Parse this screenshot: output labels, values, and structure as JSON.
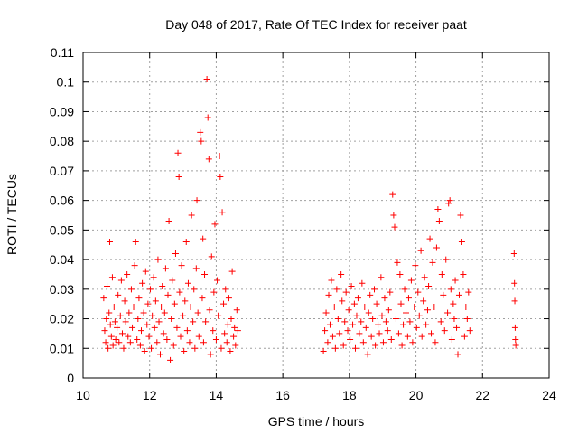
{
  "chart_data": {
    "type": "scatter",
    "title": "Day 048 of 2017, Rate Of TEC Index for receiver paat",
    "xlabel": "GPS time / hours",
    "ylabel": "ROTI / TECUs",
    "xlim": [
      10,
      24
    ],
    "ylim": [
      0,
      0.11
    ],
    "xticks": [
      "10",
      "12",
      "14",
      "16",
      "18",
      "20",
      "22",
      "24"
    ],
    "yticks": [
      "0",
      "0.01",
      "0.02",
      "0.03",
      "0.04",
      "0.05",
      "0.06",
      "0.07",
      "0.08",
      "0.09",
      "0.1",
      "0.11"
    ],
    "grid": true,
    "marker": "plus",
    "color": "#ff0000",
    "series": [
      {
        "points": [
          [
            10.62,
            0.027
          ],
          [
            10.65,
            0.016
          ],
          [
            10.68,
            0.012
          ],
          [
            10.7,
            0.02
          ],
          [
            10.72,
            0.031
          ],
          [
            10.75,
            0.01
          ],
          [
            10.78,
            0.022
          ],
          [
            10.8,
            0.046
          ],
          [
            10.82,
            0.018
          ],
          [
            10.85,
            0.014
          ],
          [
            10.88,
            0.034
          ],
          [
            10.9,
            0.011
          ],
          [
            10.93,
            0.024
          ],
          [
            10.96,
            0.019
          ],
          [
            10.98,
            0.013
          ],
          [
            11.02,
            0.017
          ],
          [
            11.05,
            0.028
          ],
          [
            11.08,
            0.012
          ],
          [
            11.12,
            0.021
          ],
          [
            11.15,
            0.033
          ],
          [
            11.18,
            0.015
          ],
          [
            11.22,
            0.01
          ],
          [
            11.25,
            0.026
          ],
          [
            11.28,
            0.019
          ],
          [
            11.32,
            0.035
          ],
          [
            11.35,
            0.014
          ],
          [
            11.38,
            0.022
          ],
          [
            11.42,
            0.012
          ],
          [
            11.45,
            0.03
          ],
          [
            11.48,
            0.017
          ],
          [
            11.52,
            0.024
          ],
          [
            11.55,
            0.038
          ],
          [
            11.58,
            0.046
          ],
          [
            11.62,
            0.013
          ],
          [
            11.65,
            0.02
          ],
          [
            11.68,
            0.027
          ],
          [
            11.72,
            0.011
          ],
          [
            11.75,
            0.016
          ],
          [
            11.78,
            0.032
          ],
          [
            11.82,
            0.022
          ],
          [
            11.85,
            0.009
          ],
          [
            11.88,
            0.036
          ],
          [
            11.92,
            0.018
          ],
          [
            11.95,
            0.025
          ],
          [
            11.98,
            0.014
          ],
          [
            12.02,
            0.03
          ],
          [
            12.05,
            0.01
          ],
          [
            12.08,
            0.021
          ],
          [
            12.12,
            0.034
          ],
          [
            12.15,
            0.017
          ],
          [
            12.18,
            0.026
          ],
          [
            12.22,
            0.012
          ],
          [
            12.25,
            0.04
          ],
          [
            12.28,
            0.019
          ],
          [
            12.32,
            0.008
          ],
          [
            12.35,
            0.024
          ],
          [
            12.38,
            0.031
          ],
          [
            12.42,
            0.015
          ],
          [
            12.45,
            0.022
          ],
          [
            12.48,
            0.037
          ],
          [
            12.52,
            0.013
          ],
          [
            12.55,
            0.028
          ],
          [
            12.58,
            0.053
          ],
          [
            12.62,
            0.006
          ],
          [
            12.65,
            0.02
          ],
          [
            12.68,
            0.033
          ],
          [
            12.72,
            0.011
          ],
          [
            12.75,
            0.025
          ],
          [
            12.78,
            0.042
          ],
          [
            12.82,
            0.017
          ],
          [
            12.85,
            0.076
          ],
          [
            12.88,
            0.068
          ],
          [
            12.9,
            0.029
          ],
          [
            12.93,
            0.014
          ],
          [
            12.96,
            0.038
          ],
          [
            13.0,
            0.021
          ],
          [
            13.03,
            0.009
          ],
          [
            13.06,
            0.026
          ],
          [
            13.1,
            0.046
          ],
          [
            13.13,
            0.016
          ],
          [
            13.16,
            0.032
          ],
          [
            13.2,
            0.012
          ],
          [
            13.23,
            0.024
          ],
          [
            13.26,
            0.055
          ],
          [
            13.3,
            0.019
          ],
          [
            13.33,
            0.03
          ],
          [
            13.36,
            0.01
          ],
          [
            13.4,
            0.037
          ],
          [
            13.42,
            0.06
          ],
          [
            13.45,
            0.022
          ],
          [
            13.48,
            0.014
          ],
          [
            13.52,
            0.083
          ],
          [
            13.55,
            0.08
          ],
          [
            13.58,
            0.027
          ],
          [
            13.6,
            0.047
          ],
          [
            13.62,
            0.012
          ],
          [
            13.65,
            0.035
          ],
          [
            13.68,
            0.019
          ],
          [
            13.72,
            0.101
          ],
          [
            13.75,
            0.088
          ],
          [
            13.78,
            0.074
          ],
          [
            13.8,
            0.023
          ],
          [
            13.83,
            0.008
          ],
          [
            13.86,
            0.041
          ],
          [
            13.9,
            0.016
          ],
          [
            13.93,
            0.029
          ],
          [
            13.96,
            0.052
          ],
          [
            14.0,
            0.013
          ],
          [
            14.03,
            0.033
          ],
          [
            14.06,
            0.021
          ],
          [
            14.1,
            0.075
          ],
          [
            14.12,
            0.068
          ],
          [
            14.15,
            0.01
          ],
          [
            14.18,
            0.056
          ],
          [
            14.22,
            0.025
          ],
          [
            14.25,
            0.015
          ],
          [
            14.28,
            0.03
          ],
          [
            14.32,
            0.012
          ],
          [
            14.35,
            0.018
          ],
          [
            14.38,
            0.027
          ],
          [
            14.42,
            0.009
          ],
          [
            14.45,
            0.02
          ],
          [
            14.48,
            0.036
          ],
          [
            14.52,
            0.014
          ],
          [
            14.55,
            0.017
          ],
          [
            14.58,
            0.011
          ],
          [
            14.62,
            0.023
          ],
          [
            14.65,
            0.016
          ],
          [
            17.22,
            0.009
          ],
          [
            17.26,
            0.016
          ],
          [
            17.3,
            0.022
          ],
          [
            17.35,
            0.012
          ],
          [
            17.38,
            0.028
          ],
          [
            17.42,
            0.018
          ],
          [
            17.46,
            0.033
          ],
          [
            17.5,
            0.014
          ],
          [
            17.55,
            0.024
          ],
          [
            17.58,
            0.01
          ],
          [
            17.62,
            0.03
          ],
          [
            17.66,
            0.02
          ],
          [
            17.7,
            0.015
          ],
          [
            17.75,
            0.035
          ],
          [
            17.78,
            0.026
          ],
          [
            17.82,
            0.011
          ],
          [
            17.86,
            0.019
          ],
          [
            17.9,
            0.029
          ],
          [
            17.95,
            0.016
          ],
          [
            17.98,
            0.023
          ],
          [
            18.02,
            0.013
          ],
          [
            18.06,
            0.031
          ],
          [
            18.1,
            0.018
          ],
          [
            18.15,
            0.025
          ],
          [
            18.18,
            0.01
          ],
          [
            18.22,
            0.021
          ],
          [
            18.26,
            0.027
          ],
          [
            18.3,
            0.015
          ],
          [
            18.35,
            0.019
          ],
          [
            18.38,
            0.032
          ],
          [
            18.42,
            0.012
          ],
          [
            18.46,
            0.024
          ],
          [
            18.5,
            0.017
          ],
          [
            18.55,
            0.008
          ],
          [
            18.58,
            0.022
          ],
          [
            18.62,
            0.028
          ],
          [
            18.66,
            0.014
          ],
          [
            18.7,
            0.02
          ],
          [
            18.75,
            0.03
          ],
          [
            18.78,
            0.011
          ],
          [
            18.82,
            0.025
          ],
          [
            18.86,
            0.018
          ],
          [
            18.9,
            0.015
          ],
          [
            18.95,
            0.034
          ],
          [
            18.98,
            0.021
          ],
          [
            19.02,
            0.012
          ],
          [
            19.06,
            0.027
          ],
          [
            19.1,
            0.019
          ],
          [
            19.15,
            0.016
          ],
          [
            19.18,
            0.023
          ],
          [
            19.22,
            0.029
          ],
          [
            19.26,
            0.013
          ],
          [
            19.3,
            0.062
          ],
          [
            19.33,
            0.055
          ],
          [
            19.36,
            0.051
          ],
          [
            19.4,
            0.02
          ],
          [
            19.44,
            0.039
          ],
          [
            19.48,
            0.015
          ],
          [
            19.52,
            0.035
          ],
          [
            19.55,
            0.025
          ],
          [
            19.58,
            0.011
          ],
          [
            19.62,
            0.018
          ],
          [
            19.66,
            0.03
          ],
          [
            19.7,
            0.022
          ],
          [
            19.75,
            0.014
          ],
          [
            19.78,
            0.027
          ],
          [
            19.82,
            0.019
          ],
          [
            19.86,
            0.033
          ],
          [
            19.9,
            0.012
          ],
          [
            19.95,
            0.024
          ],
          [
            19.98,
            0.038
          ],
          [
            20.02,
            0.017
          ],
          [
            20.06,
            0.029
          ],
          [
            20.1,
            0.021
          ],
          [
            20.15,
            0.043
          ],
          [
            20.18,
            0.014
          ],
          [
            20.22,
            0.026
          ],
          [
            20.26,
            0.034
          ],
          [
            20.3,
            0.018
          ],
          [
            20.35,
            0.023
          ],
          [
            20.38,
            0.031
          ],
          [
            20.42,
            0.047
          ],
          [
            20.46,
            0.015
          ],
          [
            20.5,
            0.039
          ],
          [
            20.55,
            0.024
          ],
          [
            20.58,
            0.012
          ],
          [
            20.62,
            0.044
          ],
          [
            20.66,
            0.057
          ],
          [
            20.7,
            0.053
          ],
          [
            20.75,
            0.019
          ],
          [
            20.78,
            0.035
          ],
          [
            20.82,
            0.028
          ],
          [
            20.86,
            0.016
          ],
          [
            20.9,
            0.04
          ],
          [
            20.95,
            0.022
          ],
          [
            20.98,
            0.059
          ],
          [
            21.02,
            0.06
          ],
          [
            21.05,
            0.03
          ],
          [
            21.08,
            0.013
          ],
          [
            21.12,
            0.025
          ],
          [
            21.15,
            0.02
          ],
          [
            21.18,
            0.033
          ],
          [
            21.22,
            0.017
          ],
          [
            21.26,
            0.008
          ],
          [
            21.3,
            0.028
          ],
          [
            21.34,
            0.055
          ],
          [
            21.38,
            0.046
          ],
          [
            21.42,
            0.035
          ],
          [
            21.46,
            0.014
          ],
          [
            21.5,
            0.024
          ],
          [
            21.54,
            0.02
          ],
          [
            21.58,
            0.029
          ],
          [
            21.62,
            0.016
          ],
          [
            22.95,
            0.042
          ],
          [
            22.96,
            0.032
          ],
          [
            22.97,
            0.026
          ],
          [
            22.98,
            0.017
          ],
          [
            22.99,
            0.013
          ],
          [
            23.0,
            0.011
          ]
        ]
      }
    ]
  }
}
